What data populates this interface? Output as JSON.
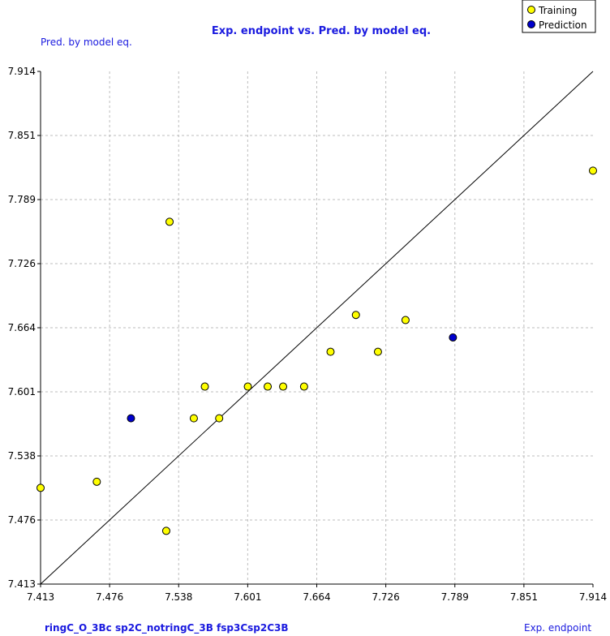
{
  "chart_data": {
    "type": "scatter",
    "title": "Exp. endpoint vs. Pred. by model eq.",
    "ylabel": "Pred. by model eq.",
    "xlabel": "Exp. endpoint",
    "footer": "ringC_O_3Bc  sp2C_notringC_3B  fsp3Csp2C3B",
    "xlim": [
      7.413,
      7.914
    ],
    "ylim": [
      7.413,
      7.914
    ],
    "x_ticks": [
      "7.413",
      "7.476",
      "7.538",
      "7.601",
      "7.664",
      "7.726",
      "7.789",
      "7.851",
      "7.914"
    ],
    "y_ticks": [
      "7.914",
      "7.851",
      "7.789",
      "7.726",
      "7.664",
      "7.601",
      "7.538",
      "7.476",
      "7.413"
    ],
    "grid": true,
    "legend_position": "top-right",
    "reference_line": "y = x",
    "series": [
      {
        "name": "Training",
        "color": "#ffff00",
        "points": [
          [
            7.413,
            7.507
          ],
          [
            7.464,
            7.513
          ],
          [
            7.53,
            7.767
          ],
          [
            7.527,
            7.465
          ],
          [
            7.552,
            7.575
          ],
          [
            7.562,
            7.606
          ],
          [
            7.575,
            7.575
          ],
          [
            7.601,
            7.606
          ],
          [
            7.619,
            7.606
          ],
          [
            7.633,
            7.606
          ],
          [
            7.652,
            7.606
          ],
          [
            7.676,
            7.64
          ],
          [
            7.699,
            7.676
          ],
          [
            7.719,
            7.64
          ],
          [
            7.744,
            7.671
          ],
          [
            7.914,
            7.817
          ]
        ]
      },
      {
        "name": "Prediction",
        "color": "#0000cc",
        "points": [
          [
            7.495,
            7.575
          ],
          [
            7.787,
            7.654
          ]
        ]
      }
    ]
  }
}
